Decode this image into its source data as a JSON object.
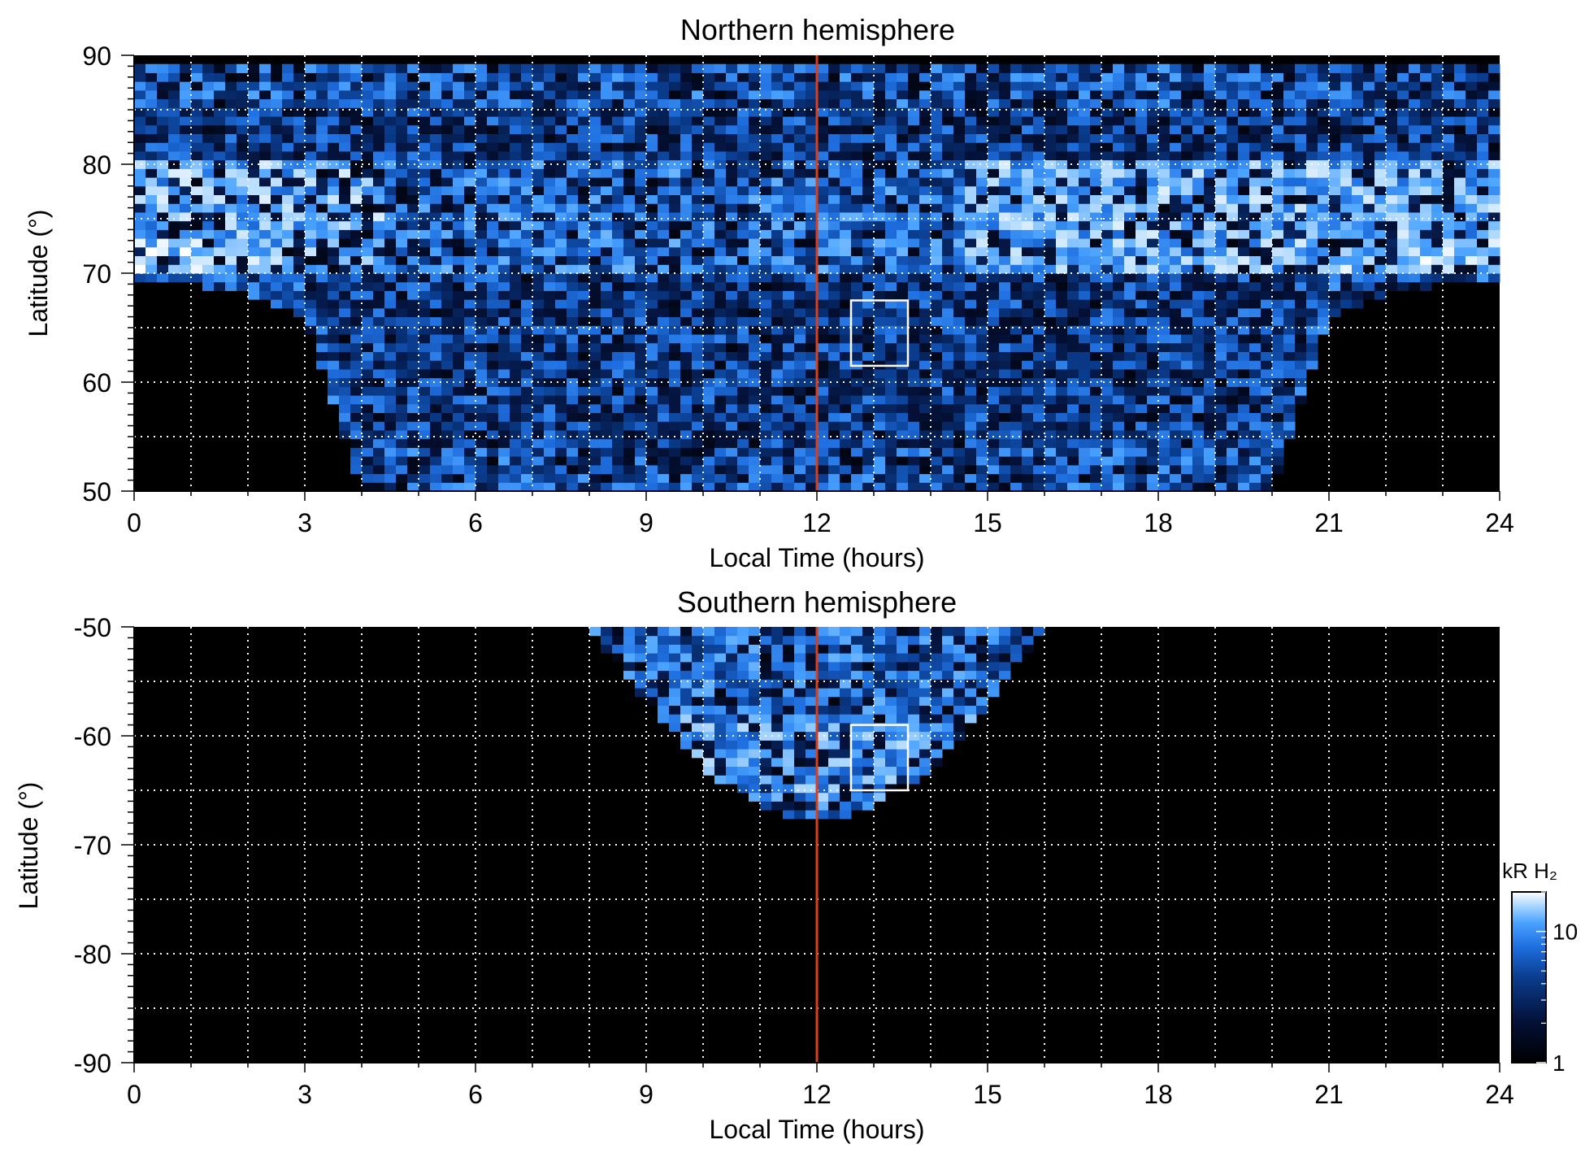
{
  "colors": {
    "background": "#000000",
    "grid": "#ffffff",
    "marker_line": "#d9401a",
    "colormap": [
      "#000000",
      "#04123a",
      "#0a3d8f",
      "#1f6fe0",
      "#4aa3ff",
      "#b5dcff",
      "#ffffff"
    ]
  },
  "chart_data": [
    {
      "type": "heatmap",
      "title": "Northern hemisphere",
      "xlabel": "Local Time (hours)",
      "ylabel": "Latitude (°)",
      "xlim": [
        0,
        24
      ],
      "ylim": [
        50,
        90
      ],
      "xticks": [
        0,
        3,
        6,
        9,
        12,
        15,
        18,
        21,
        24
      ],
      "yticks": [
        50,
        60,
        70,
        80,
        90
      ],
      "grid": true,
      "marker_line_x": 12,
      "box": {
        "x": [
          12.6,
          13.6
        ],
        "y": [
          61.5,
          67.5
        ]
      },
      "coverage_boundary": {
        "lt": [
          0,
          1,
          2,
          3,
          4,
          5,
          6,
          7,
          8,
          9,
          10,
          11,
          12,
          13,
          14,
          15,
          16,
          17,
          18,
          19,
          20,
          21,
          22,
          23,
          24
        ],
        "min_latitude": [
          69.5,
          69.0,
          68.0,
          66.0,
          50,
          50,
          50,
          50,
          50,
          50,
          50,
          50,
          50,
          50,
          50,
          50,
          50,
          50,
          50,
          50,
          50,
          66.0,
          68.0,
          69.0,
          69.5
        ]
      },
      "bright_band_latitude": [
        70,
        80
      ]
    },
    {
      "type": "heatmap",
      "title": "Southern hemisphere",
      "xlabel": "Local Time (hours)",
      "ylabel": "Latitude (°)",
      "xlim": [
        0,
        24
      ],
      "ylim": [
        -90,
        -50
      ],
      "xticks": [
        0,
        3,
        6,
        9,
        12,
        15,
        18,
        21,
        24
      ],
      "yticks": [
        -90,
        -80,
        -70,
        -60,
        -50
      ],
      "grid": true,
      "marker_line_x": 12,
      "box": {
        "x": [
          12.6,
          13.6
        ],
        "y": [
          -65,
          -59
        ]
      },
      "coverage_boundary": {
        "lt": [
          8,
          9,
          10,
          11,
          12,
          13,
          14,
          15,
          16
        ],
        "min_latitude": [
          -50,
          -57,
          -63,
          -66.5,
          -68,
          -66.5,
          -63,
          -57,
          -50
        ]
      },
      "colorbar": {
        "label": "kR H₂",
        "scale": "log",
        "range": [
          1,
          20
        ],
        "ticks": [
          1,
          10
        ]
      }
    }
  ]
}
